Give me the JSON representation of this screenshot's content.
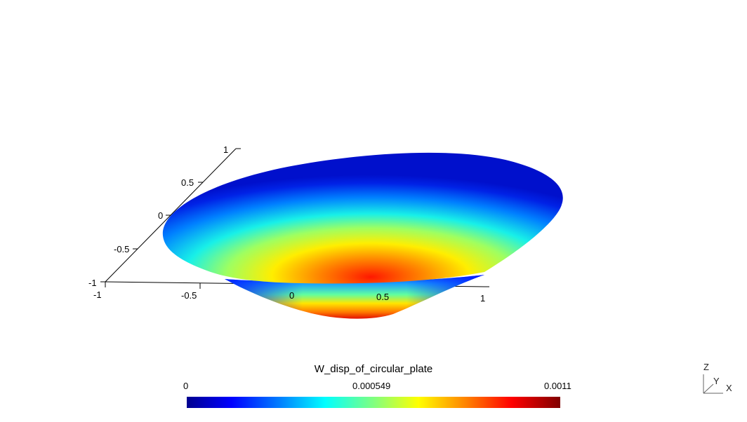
{
  "scene": {
    "axis_x_ticks": [
      "-1",
      "-0.5",
      "0",
      "0.5",
      "1"
    ],
    "axis_y_ticks": [
      "-1",
      "-0.5",
      "0",
      "0.5",
      "1"
    ]
  },
  "colorbar": {
    "title": "W_disp_of_circular_plate",
    "min_label": "0",
    "mid_label": "0.000549",
    "max_label": "0.0011",
    "colormap": [
      "#00008f",
      "#0000ff",
      "#0080ff",
      "#00ffff",
      "#80ff80",
      "#ffff00",
      "#ff8000",
      "#ff0000",
      "#800000"
    ]
  },
  "orientation": {
    "z": "Z",
    "y": "Y",
    "x": "X"
  }
}
